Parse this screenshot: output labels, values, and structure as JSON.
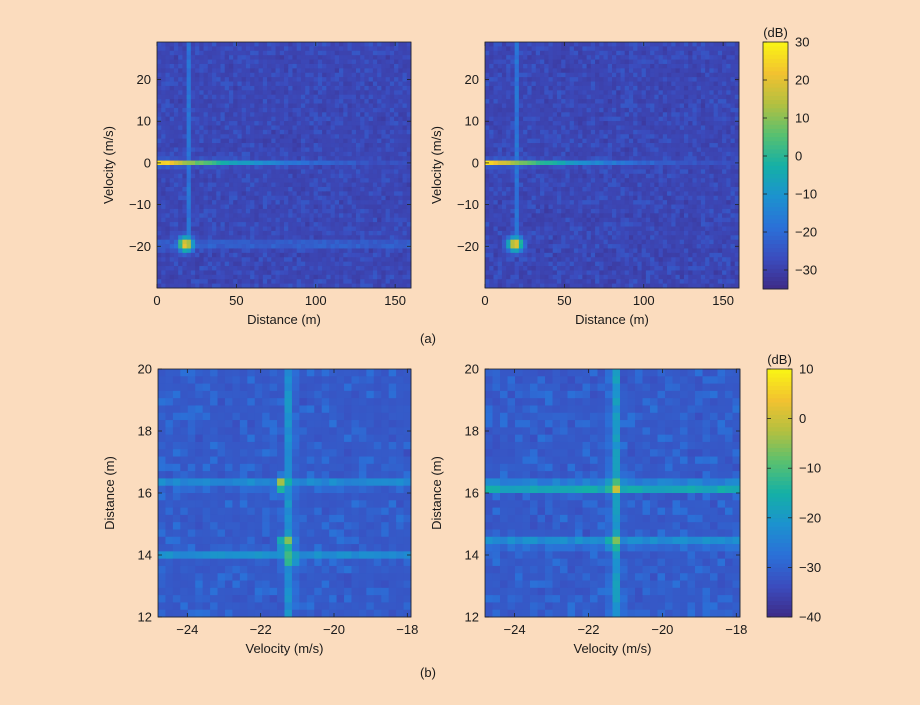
{
  "figure": {
    "background": "#fbdcbe",
    "label_a": "(a)",
    "label_b": "(b)"
  },
  "colormap": [
    "#3e2b87",
    "#3b4cbe",
    "#2b70d8",
    "#1c92cf",
    "#14b0a6",
    "#58c070",
    "#b3c040",
    "#f2c230",
    "#f9f514"
  ],
  "chart_data": [
    {
      "type": "heatmap",
      "panel": "a-left",
      "xlabel": "Distance (m)",
      "ylabel": "Velocity (m/s)",
      "xlim": [
        0,
        160
      ],
      "ylim": [
        -30,
        29
      ],
      "xticks": [
        0,
        50,
        100,
        150
      ],
      "yticks": [
        -20,
        -10,
        0,
        10,
        20
      ],
      "zlim": [
        -35,
        30
      ],
      "background_level_db": -30,
      "features": [
        {
          "kind": "ridge",
          "axis": "velocity",
          "at": 0,
          "from": 0,
          "to": 160,
          "peak_db": 30,
          "decay": "strong near 0 m, fading by ~95 m"
        },
        {
          "kind": "ridge",
          "axis": "velocity",
          "at": -19.5,
          "from": 0,
          "to": 160,
          "peak_db": -18
        },
        {
          "kind": "ridge",
          "axis": "distance",
          "at": 20,
          "from": -20,
          "to": 29,
          "peak_db": -18
        },
        {
          "kind": "peak",
          "x": 18,
          "y": -19.5,
          "peak_db": 25
        }
      ]
    },
    {
      "type": "heatmap",
      "panel": "a-right",
      "xlabel": "Distance (m)",
      "ylabel": "Velocity (m/s)",
      "xlim": [
        0,
        160
      ],
      "ylim": [
        -30,
        29
      ],
      "xticks": [
        0,
        50,
        100,
        150
      ],
      "yticks": [
        -20,
        -10,
        0,
        10,
        20
      ],
      "zlim": [
        -35,
        30
      ],
      "background_level_db": -30,
      "features": [
        {
          "kind": "ridge",
          "axis": "velocity",
          "at": 0,
          "from": 0,
          "to": 160,
          "peak_db": 30,
          "decay": "strong near 0 m, fading by ~95 m"
        },
        {
          "kind": "ridge",
          "axis": "distance",
          "at": 20,
          "from": -20,
          "to": 29,
          "peak_db": -18
        },
        {
          "kind": "peak",
          "x": 19,
          "y": -19.5,
          "peak_db": 25
        }
      ]
    },
    {
      "type": "heatmap",
      "panel": "b-left",
      "xlabel": "Velocity (m/s)",
      "ylabel": "Distance (m)",
      "xlim": [
        -24.8,
        -17.9
      ],
      "ylim": [
        12,
        20
      ],
      "xticks": [
        -24,
        -22,
        -20,
        -18
      ],
      "yticks": [
        12,
        14,
        16,
        18,
        20
      ],
      "zlim": [
        -40,
        10
      ],
      "background_level_db": -33,
      "features": [
        {
          "kind": "peak",
          "x": -21.4,
          "y": 16.3,
          "peak_db": 0
        },
        {
          "kind": "peak",
          "x": -21.3,
          "y": 14.4,
          "peak_db": -2
        },
        {
          "kind": "peak",
          "x": -21.2,
          "y": 13.9,
          "peak_db": -4
        },
        {
          "kind": "ridge",
          "axis": "velocity",
          "at": -21.2,
          "from": 12,
          "to": 20,
          "peak_db": -20
        },
        {
          "kind": "ridge",
          "axis": "distance",
          "at": 16.3,
          "from": -24.8,
          "to": -17.9,
          "peak_db": -22
        },
        {
          "kind": "ridge",
          "axis": "distance",
          "at": 14,
          "from": -24.8,
          "to": -17.9,
          "peak_db": -22
        }
      ]
    },
    {
      "type": "heatmap",
      "panel": "b-right",
      "xlabel": "Velocity (m/s)",
      "ylabel": "Distance (m)",
      "xlim": [
        -24.8,
        -17.9
      ],
      "ylim": [
        12,
        20
      ],
      "xticks": [
        -24,
        -22,
        -20,
        -18
      ],
      "yticks": [
        12,
        14,
        16,
        18,
        20
      ],
      "zlim": [
        -40,
        10
      ],
      "background_level_db": -33,
      "features": [
        {
          "kind": "peak",
          "x": -21.3,
          "y": 16.2,
          "peak_db": 5
        },
        {
          "kind": "peak",
          "x": -21.3,
          "y": 14.4,
          "peak_db": -2
        },
        {
          "kind": "ridge",
          "axis": "velocity",
          "at": -21.3,
          "from": 12,
          "to": 20,
          "peak_db": -18
        },
        {
          "kind": "ridge",
          "axis": "distance",
          "at": 16.2,
          "from": -24.8,
          "to": -17.9,
          "peak_db": -12
        },
        {
          "kind": "ridge",
          "axis": "distance",
          "at": 14.4,
          "from": -24.8,
          "to": -17.9,
          "peak_db": -20
        }
      ]
    },
    {
      "type": "colorbar",
      "panel": "a",
      "unit_label": "(dB)",
      "range": [
        -35,
        30
      ],
      "ticks": [
        30,
        20,
        10,
        0,
        -10,
        -20,
        -30
      ]
    },
    {
      "type": "colorbar",
      "panel": "b",
      "unit_label": "(dB)",
      "range": [
        -40,
        10
      ],
      "ticks": [
        10,
        0,
        -10,
        -20,
        -30,
        -40
      ]
    }
  ]
}
